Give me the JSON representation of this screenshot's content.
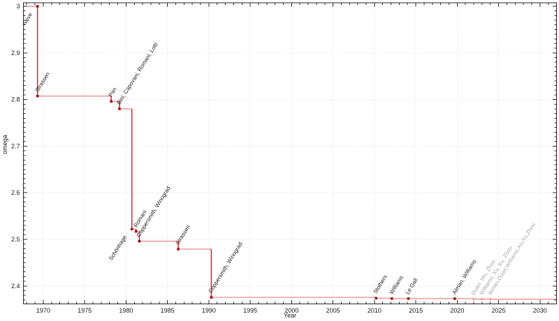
{
  "chart_data": {
    "type": "line",
    "subtype": "step-post",
    "title": "",
    "xlabel": "Year",
    "ylabel": "omega",
    "xlim": [
      1967.6,
      2032.0
    ],
    "ylim": [
      2.3615,
      3.0075
    ],
    "grid": true,
    "legend": "none",
    "x_major_ticks": [
      1970,
      1975,
      1980,
      1985,
      1990,
      1995,
      2000,
      2005,
      2010,
      2015,
      2020,
      2025,
      2030
    ],
    "x_minor_step": 1,
    "y_major_ticks": [
      2.4,
      2.5,
      2.6,
      2.7,
      2.8,
      2.9,
      3.0
    ],
    "y_major_tick_labels": [
      "2.4",
      "2.5",
      "2.6",
      "2.7",
      "2.8",
      "2.9",
      "3"
    ],
    "y_minor_step": 0.01,
    "colors": {
      "line": "#e04040",
      "line_vertical": "#d92b2b",
      "marker": "#a31212",
      "marker_faded": "#f2a7a7",
      "label": "#1a1a1a",
      "label_faded": "#a8a8a8",
      "grid": "#dcdcdc",
      "axis": "#262626"
    },
    "series": [
      {
        "name": "omega",
        "points": [
          {
            "label": "naive",
            "x": 1969.3,
            "omega": 3.0,
            "faded": false,
            "label_side": "below"
          },
          {
            "label": "Strassen",
            "x": 1969.3,
            "omega": 2.8074,
            "faded": false,
            "label_side": "above"
          },
          {
            "label": "Pan",
            "x": 1978.2,
            "omega": 2.796,
            "faded": false,
            "label_side": "above"
          },
          {
            "label": "Bini, Capovani, Romani, Lotti",
            "x": 1979.2,
            "omega": 2.78,
            "faded": false,
            "label_side": "above"
          },
          {
            "label": "Schönhage",
            "x": 1980.7,
            "omega": 2.522,
            "faded": false,
            "label_side": "below"
          },
          {
            "label": "Romani",
            "x": 1981.2,
            "omega": 2.517,
            "faded": false,
            "label_side": "above"
          },
          {
            "label": "Coppersmith, Winograd",
            "x": 1981.6,
            "omega": 2.496,
            "faded": false,
            "label_side": "above"
          },
          {
            "label": "Strassen",
            "x": 1986.3,
            "omega": 2.479,
            "faded": false,
            "label_side": "above"
          },
          {
            "label": "Coppersmith, Winograd",
            "x": 1990.3,
            "omega": 2.3755,
            "faded": false,
            "label_side": "above"
          },
          {
            "label": "Stothers",
            "x": 2010.2,
            "omega": 2.3737,
            "faded": false,
            "label_side": "above"
          },
          {
            "label": "Williams",
            "x": 2012.1,
            "omega": 2.3729,
            "faded": false,
            "label_side": "above"
          },
          {
            "label": "Le Gall",
            "x": 2014.1,
            "omega": 2.3728639,
            "faded": false,
            "label_side": "above"
          },
          {
            "label": "Alman, Williams",
            "x": 2019.7,
            "omega": 2.3728596,
            "faded": false,
            "label_side": "above"
          },
          {
            "label": "Duan, Wu, Zhou",
            "x": 2022.0,
            "omega": 2.37188,
            "faded": true,
            "label_side": "above"
          },
          {
            "label": "Williams, Xu, Xu, Zhou",
            "x": 2023.0,
            "omega": 2.371866,
            "faded": true,
            "label_side": "above"
          },
          {
            "label": "Alman,Duan,Williams,Xu,Xu,Zhou",
            "x": 2024.0,
            "omega": 2.371552,
            "faded": true,
            "label_side": "above"
          }
        ]
      }
    ]
  }
}
